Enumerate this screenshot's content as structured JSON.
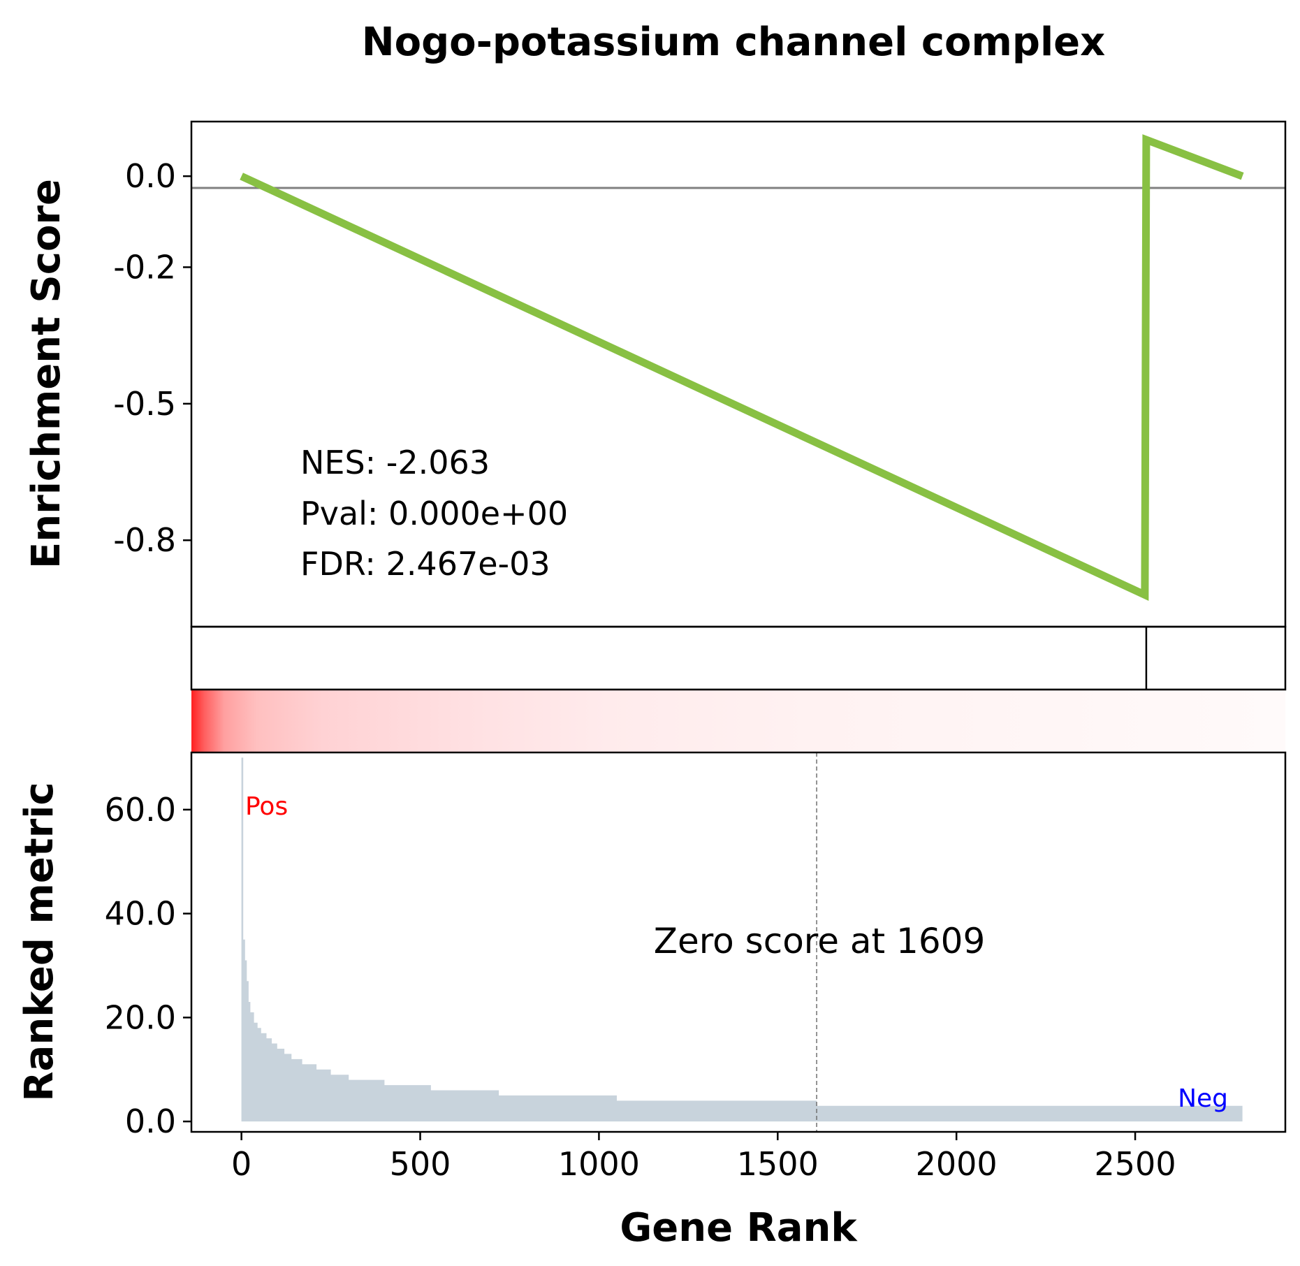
{
  "chart_data": {
    "type": "line",
    "title": "Nogo-potassium channel complex",
    "xlabel": "Gene Rank",
    "xlim": [
      -140,
      2920
    ],
    "xticks": [
      0,
      500,
      1000,
      1500,
      2000,
      2500
    ],
    "enrichment": {
      "ylabel": "Enrichment Score",
      "ylim": [
        -0.99,
        0.12
      ],
      "yticks": [
        0.0,
        -0.2,
        -0.5,
        -0.8
      ],
      "ytick_labels": [
        "0.0",
        "-0.2",
        "-0.5",
        "-0.8"
      ],
      "line_color": "#88c043",
      "points": [
        [
          0,
          0.0
        ],
        [
          2527,
          -0.92
        ],
        [
          2531,
          0.08
        ],
        [
          2800,
          0.0
        ]
      ],
      "stats": {
        "nes": "NES: -2.063",
        "pval": "Pval: 0.000e+00",
        "fdr": "FDR: 2.467e-03"
      }
    },
    "hits": [
      2531
    ],
    "ranked": {
      "ylabel": "Ranked metric",
      "ylim": [
        -2,
        71
      ],
      "yticks": [
        0,
        20,
        40,
        60
      ],
      "ytick_labels": [
        "0.0",
        "20.0",
        "40.0",
        "60.0"
      ],
      "fill_color": "#c8d3dc",
      "steps": [
        [
          0,
          70
        ],
        [
          5,
          35
        ],
        [
          10,
          31
        ],
        [
          15,
          27
        ],
        [
          20,
          23
        ],
        [
          25,
          21
        ],
        [
          35,
          19
        ],
        [
          45,
          18
        ],
        [
          55,
          17
        ],
        [
          70,
          16
        ],
        [
          85,
          15
        ],
        [
          100,
          14
        ],
        [
          120,
          13
        ],
        [
          140,
          12
        ],
        [
          170,
          11
        ],
        [
          210,
          10
        ],
        [
          250,
          9
        ],
        [
          300,
          8
        ],
        [
          400,
          7
        ],
        [
          530,
          6
        ],
        [
          720,
          5
        ],
        [
          1050,
          4
        ],
        [
          1609,
          3
        ],
        [
          2800,
          3
        ]
      ],
      "zero_label": "Zero score at 1609",
      "zero_at": 1609,
      "pos_label": "Pos",
      "neg_label": "Neg",
      "pos_color": "#ff0000",
      "neg_color": "#0000ff"
    }
  }
}
